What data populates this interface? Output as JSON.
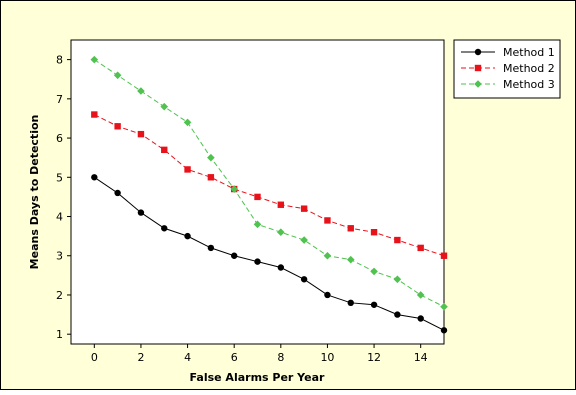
{
  "chart_data": {
    "type": "line",
    "title": "",
    "xlabel": "False Alarms Per Year",
    "ylabel": "Means Days to Detection",
    "xlim": [
      -1,
      15
    ],
    "ylim": [
      0.75,
      8.5
    ],
    "xticks": [
      0,
      2,
      4,
      6,
      8,
      10,
      12,
      14
    ],
    "yticks": [
      1,
      2,
      3,
      4,
      5,
      6,
      7,
      8
    ],
    "grid": false,
    "legend_position": "top-right outside",
    "x": [
      0,
      1,
      2,
      3,
      4,
      5,
      6,
      7,
      8,
      9,
      10,
      11,
      12,
      13,
      14,
      15
    ],
    "series": [
      {
        "name": "Method 1",
        "color": "#000000",
        "line_style": "solid",
        "marker": "circle",
        "values": [
          5.0,
          4.6,
          4.1,
          3.7,
          3.5,
          3.2,
          3.0,
          2.85,
          2.7,
          2.4,
          2.0,
          1.8,
          1.75,
          1.5,
          1.4,
          1.1
        ]
      },
      {
        "name": "Method 2",
        "color": "#e8121b",
        "line_style": "dashed",
        "marker": "square",
        "values": [
          6.6,
          6.3,
          6.1,
          5.7,
          5.2,
          5.0,
          4.7,
          4.5,
          4.3,
          4.2,
          3.9,
          3.7,
          3.6,
          3.4,
          3.2,
          3.0
        ]
      },
      {
        "name": "Method 3",
        "color": "#4fc24f",
        "line_style": "dashed",
        "marker": "diamond",
        "values": [
          8.0,
          7.6,
          7.2,
          6.8,
          6.4,
          5.5,
          4.7,
          3.8,
          3.6,
          3.4,
          3.0,
          2.9,
          2.6,
          2.4,
          2.0,
          1.7
        ]
      }
    ]
  },
  "colors": {
    "outer_background": "#ffffd8",
    "plot_background": "#ffffff"
  }
}
